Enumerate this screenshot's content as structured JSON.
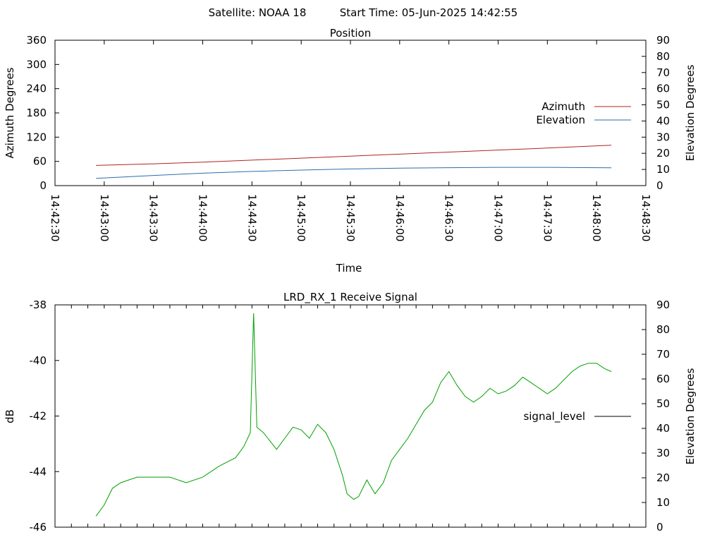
{
  "header": {
    "satellite_label": "Satellite: NOAA 18",
    "start_time_label": "Start Time: 05-Jun-2025 14:42:55"
  },
  "colors": {
    "azimuth": "#b22222",
    "elevation": "#2a6ead",
    "signal": "#00a000",
    "axis": "#000000"
  },
  "chart_data": [
    {
      "type": "line",
      "title": "Position",
      "xlabel": "Time",
      "ylabel": "Azimuth Degrees",
      "y2label": "Elevation Degrees",
      "xlim": [
        "14:42:30",
        "14:48:30"
      ],
      "ylim": [
        0,
        360
      ],
      "y2lim": [
        0,
        90
      ],
      "x_ticks": [
        "14:42:30",
        "14:43:00",
        "14:43:30",
        "14:44:00",
        "14:44:30",
        "14:45:00",
        "14:45:30",
        "14:46:00",
        "14:46:30",
        "14:47:00",
        "14:47:30",
        "14:48:00",
        "14:48:30"
      ],
      "y_ticks": [
        "0",
        "60",
        "120",
        "180",
        "240",
        "300",
        "360"
      ],
      "y2_ticks": [
        "0",
        "10",
        "20",
        "30",
        "40",
        "50",
        "60",
        "70",
        "80",
        "90"
      ],
      "grid": false,
      "legend": "right",
      "series": [
        {
          "name": "Azimuth",
          "axis": "y",
          "x": [
            "14:42:55",
            "14:43:30",
            "14:44:00",
            "14:44:30",
            "14:45:00",
            "14:45:30",
            "14:46:00",
            "14:46:30",
            "14:47:00",
            "14:47:30",
            "14:48:09"
          ],
          "values": [
            50,
            54,
            58,
            63,
            68,
            73,
            78,
            83,
            88,
            93,
            100
          ]
        },
        {
          "name": "Elevation",
          "axis": "y2",
          "x": [
            "14:42:55",
            "14:43:30",
            "14:44:00",
            "14:44:30",
            "14:45:00",
            "14:45:30",
            "14:46:00",
            "14:46:30",
            "14:47:00",
            "14:47:30",
            "14:48:09"
          ],
          "values": [
            4.5,
            6.3,
            7.7,
            8.8,
            9.6,
            10.3,
            10.8,
            11.1,
            11.3,
            11.3,
            11.0
          ]
        }
      ]
    },
    {
      "type": "line",
      "title": "LRD_RX_1 Receive Signal",
      "ylabel": "dB",
      "y2label": "Elevation Degrees",
      "xlim": [
        "14:42:30",
        "14:48:30"
      ],
      "ylim": [
        -46,
        -38
      ],
      "y2lim": [
        0,
        90
      ],
      "y_ticks": [
        "-38",
        "-40",
        "-42",
        "-44",
        "-46"
      ],
      "y2_ticks": [
        "0",
        "10",
        "20",
        "30",
        "40",
        "50",
        "60",
        "70",
        "80",
        "90"
      ],
      "grid": false,
      "legend": "right",
      "series": [
        {
          "name": "signal_level",
          "x": [
            "14:42:55",
            "14:43:00",
            "14:43:05",
            "14:43:10",
            "14:43:20",
            "14:43:30",
            "14:43:40",
            "14:43:50",
            "14:44:00",
            "14:44:10",
            "14:44:20",
            "14:44:25",
            "14:44:29",
            "14:44:31",
            "14:44:33",
            "14:44:37",
            "14:44:45",
            "14:44:50",
            "14:44:55",
            "14:45:00",
            "14:45:05",
            "14:45:10",
            "14:45:15",
            "14:45:20",
            "14:45:25",
            "14:45:28",
            "14:45:32",
            "14:45:35",
            "14:45:40",
            "14:45:45",
            "14:45:50",
            "14:45:55",
            "14:46:00",
            "14:46:05",
            "14:46:10",
            "14:46:15",
            "14:46:20",
            "14:46:25",
            "14:46:30",
            "14:46:35",
            "14:46:40",
            "14:46:45",
            "14:46:50",
            "14:46:55",
            "14:47:00",
            "14:47:05",
            "14:47:10",
            "14:47:15",
            "14:47:20",
            "14:47:25",
            "14:47:30",
            "14:47:35",
            "14:47:40",
            "14:47:45",
            "14:47:50",
            "14:47:55",
            "14:48:00",
            "14:48:05",
            "14:48:09"
          ],
          "values": [
            -45.6,
            -45.2,
            -44.6,
            -44.4,
            -44.2,
            -44.2,
            -44.2,
            -44.4,
            -44.2,
            -43.8,
            -43.5,
            -43.1,
            -42.6,
            -38.3,
            -42.4,
            -42.6,
            -43.2,
            -42.8,
            -42.4,
            -42.5,
            -42.8,
            -42.3,
            -42.6,
            -43.2,
            -44.1,
            -44.8,
            -45.0,
            -44.9,
            -44.3,
            -44.8,
            -44.4,
            -43.6,
            -43.2,
            -42.8,
            -42.3,
            -41.8,
            -41.5,
            -40.8,
            -40.4,
            -40.9,
            -41.3,
            -41.5,
            -41.3,
            -41.0,
            -41.2,
            -41.1,
            -40.9,
            -40.6,
            -40.8,
            -41.0,
            -41.2,
            -41.0,
            -40.7,
            -40.4,
            -40.2,
            -40.1,
            -40.1,
            -40.3,
            -40.4
          ]
        }
      ]
    }
  ]
}
